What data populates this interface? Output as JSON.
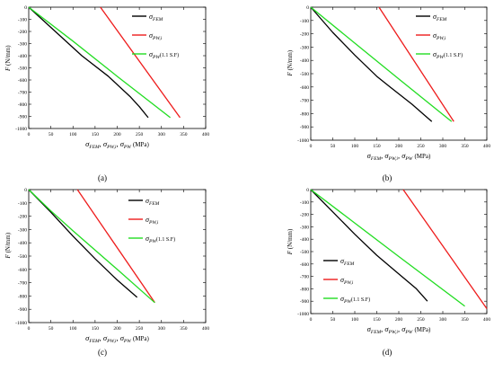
{
  "chart_data": [
    {
      "type": "line",
      "panel_label": "(a)",
      "xlim": [
        0,
        400
      ],
      "ylim": [
        -1000,
        0
      ],
      "x_ticks": [
        0,
        50,
        100,
        150,
        200,
        250,
        300,
        350,
        400
      ],
      "y_ticks": [
        0,
        -100,
        -200,
        -300,
        -400,
        -500,
        -600,
        -700,
        -800,
        -900,
        -1000
      ],
      "legend_position": "top-right",
      "series": [
        {
          "name": "σ_FEM",
          "color": "#000000",
          "x": [
            0,
            60,
            120,
            180,
            230,
            250,
            270
          ],
          "y": [
            0,
            -200,
            -400,
            -570,
            -740,
            -820,
            -910
          ]
        },
        {
          "name": "σ_PW,i",
          "color": "#ee1c1c",
          "x": [
            162,
            342
          ],
          "y": [
            0,
            -910
          ]
        },
        {
          "name": "σ_PW (1.1 S.F)",
          "color": "#22dd22",
          "x": [
            0,
            100,
            200,
            320
          ],
          "y": [
            0,
            -280,
            -570,
            -910
          ]
        }
      ]
    },
    {
      "type": "line",
      "panel_label": "(b)",
      "xlim": [
        0,
        400
      ],
      "ylim": [
        -1000,
        0
      ],
      "x_ticks": [
        0,
        50,
        100,
        150,
        200,
        250,
        300,
        350,
        400
      ],
      "y_ticks": [
        0,
        -100,
        -200,
        -300,
        -400,
        -500,
        -600,
        -700,
        -800,
        -900,
        -1000
      ],
      "legend_position": "top-right",
      "series": [
        {
          "name": "σ_FEM",
          "color": "#000000",
          "x": [
            0,
            50,
            100,
            150,
            180,
            230,
            275
          ],
          "y": [
            0,
            -190,
            -360,
            -520,
            -600,
            -730,
            -860
          ]
        },
        {
          "name": "σ_PW,i",
          "color": "#ee1c1c",
          "x": [
            155,
            325
          ],
          "y": [
            0,
            -860
          ]
        },
        {
          "name": "σ_PW (1.1 S.F)",
          "color": "#22dd22",
          "x": [
            0,
            100,
            200,
            320
          ],
          "y": [
            0,
            -270,
            -540,
            -860
          ]
        }
      ]
    },
    {
      "type": "line",
      "panel_label": "(c)",
      "xlim": [
        0,
        400
      ],
      "ylim": [
        -1000,
        0
      ],
      "x_ticks": [
        0,
        50,
        100,
        150,
        200,
        250,
        300,
        350,
        400
      ],
      "y_ticks": [
        0,
        -100,
        -200,
        -300,
        -400,
        -500,
        -600,
        -700,
        -800,
        -900,
        -1000
      ],
      "legend_position": "top-right",
      "series": [
        {
          "name": "σ_FEM",
          "color": "#000000",
          "x": [
            0,
            50,
            100,
            150,
            200,
            245
          ],
          "y": [
            0,
            -170,
            -350,
            -520,
            -680,
            -810
          ]
        },
        {
          "name": "σ_PW,i",
          "color": "#ee1c1c",
          "x": [
            110,
            285
          ],
          "y": [
            0,
            -850
          ]
        },
        {
          "name": "σ_PW (1.1 S.F)",
          "color": "#22dd22",
          "x": [
            0,
            50,
            100,
            200,
            285
          ],
          "y": [
            0,
            -160,
            -310,
            -600,
            -850
          ]
        }
      ]
    },
    {
      "type": "line",
      "panel_label": "(d)",
      "xlim": [
        0,
        400
      ],
      "ylim": [
        -1000,
        0
      ],
      "x_ticks": [
        0,
        50,
        100,
        150,
        200,
        250,
        300,
        350,
        400
      ],
      "y_ticks": [
        0,
        -100,
        -200,
        -300,
        -400,
        -500,
        -600,
        -700,
        -800,
        -900,
        -1000
      ],
      "legend_position": "bottom-left",
      "series": [
        {
          "name": "σ_FEM",
          "color": "#000000",
          "x": [
            0,
            50,
            100,
            150,
            200,
            240,
            265
          ],
          "y": [
            0,
            -180,
            -360,
            -530,
            -680,
            -800,
            -900
          ]
        },
        {
          "name": "σ_PW,i",
          "color": "#ee1c1c",
          "x": [
            210,
            400
          ],
          "y": [
            0,
            -960
          ]
        },
        {
          "name": "σ_PW (1.1 S.F)",
          "color": "#22dd22",
          "x": [
            0,
            100,
            200,
            350
          ],
          "y": [
            0,
            -270,
            -540,
            -940
          ]
        }
      ]
    }
  ],
  "axis_text": {
    "y_label_symbol": "F",
    "y_label_unit": "(N/mm)",
    "x_label_unit": "(MPa)",
    "x_label_sep": ",",
    "x_sub_fem": "FEM",
    "x_sub_pwi": "PW,i",
    "x_sub_pw": "PW"
  },
  "legend_text": {
    "fem_sub": "FEM",
    "pwi_sub": "PW,i",
    "pw_sub": "PW",
    "pw_suffix": "(1.1 S.F)"
  }
}
